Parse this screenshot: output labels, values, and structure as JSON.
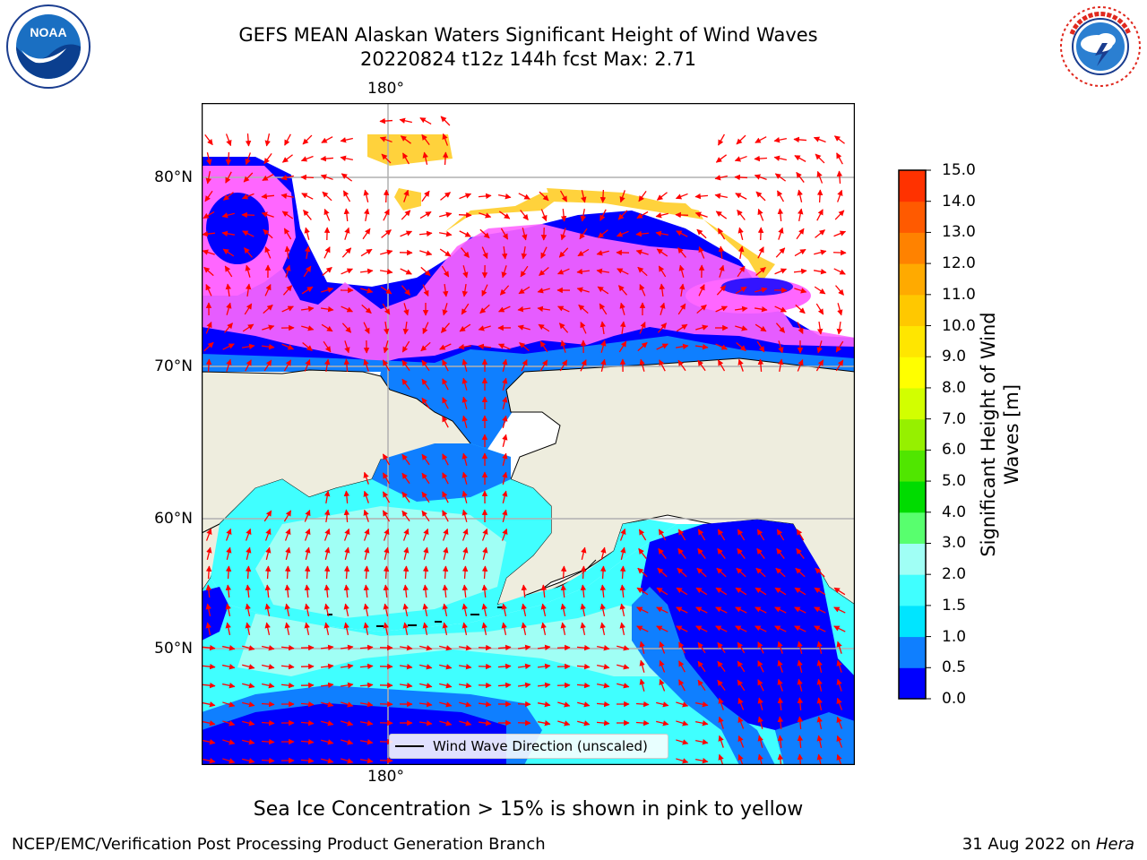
{
  "title": {
    "line1": "GEFS MEAN Alaskan Waters Significant Height of Wind Waves",
    "line2": "20220824 t12z 144h fcst   Max: 2.71"
  },
  "logos": {
    "left": {
      "text": "NOAA",
      "icon": "noaa-logo"
    },
    "right": {
      "icon": "nws-logo"
    }
  },
  "map": {
    "lon_label_top": "180°",
    "lon_label_bottom": "180°",
    "lat_labels": [
      "80°N",
      "70°N",
      "60°N",
      "50°N"
    ],
    "legend_label": "Wind Wave Direction (unscaled)",
    "colors": {
      "land": "#eeedde",
      "water_low": "#0000ff",
      "water_mid": "#0f7fff",
      "water_high": "#00ffff",
      "ice_pink": "#ff66ff",
      "ice_yellow": "#ffd23c",
      "arrow": "#ff0000",
      "grid": "#b0b0b0"
    }
  },
  "colorbar": {
    "label": "Significant Height of Wind Waves [m]",
    "ticks": [
      "0.0",
      "0.5",
      "1.0",
      "1.5",
      "2.0",
      "3.0",
      "4.0",
      "5.0",
      "6.0",
      "7.0",
      "8.0",
      "9.0",
      "10.0",
      "11.0",
      "12.0",
      "13.0",
      "14.0",
      "15.0"
    ],
    "colors": [
      "#0000ff",
      "#0f7fff",
      "#00e5ff",
      "#40ffff",
      "#a0fff5",
      "#58ff6e",
      "#00dc00",
      "#50e600",
      "#96f000",
      "#d2ff00",
      "#ffff00",
      "#ffe600",
      "#ffc800",
      "#ffaa00",
      "#ff8200",
      "#ff5a00",
      "#ff3200",
      "#ff0000"
    ]
  },
  "ice_note": "Sea Ice Concentration > 15% is shown in pink to yellow",
  "footer": {
    "left": "NCEP/EMC/Verification Post Processing Product Generation Branch",
    "right_date": "31 Aug 2022 on ",
    "right_machine": "Hera"
  }
}
